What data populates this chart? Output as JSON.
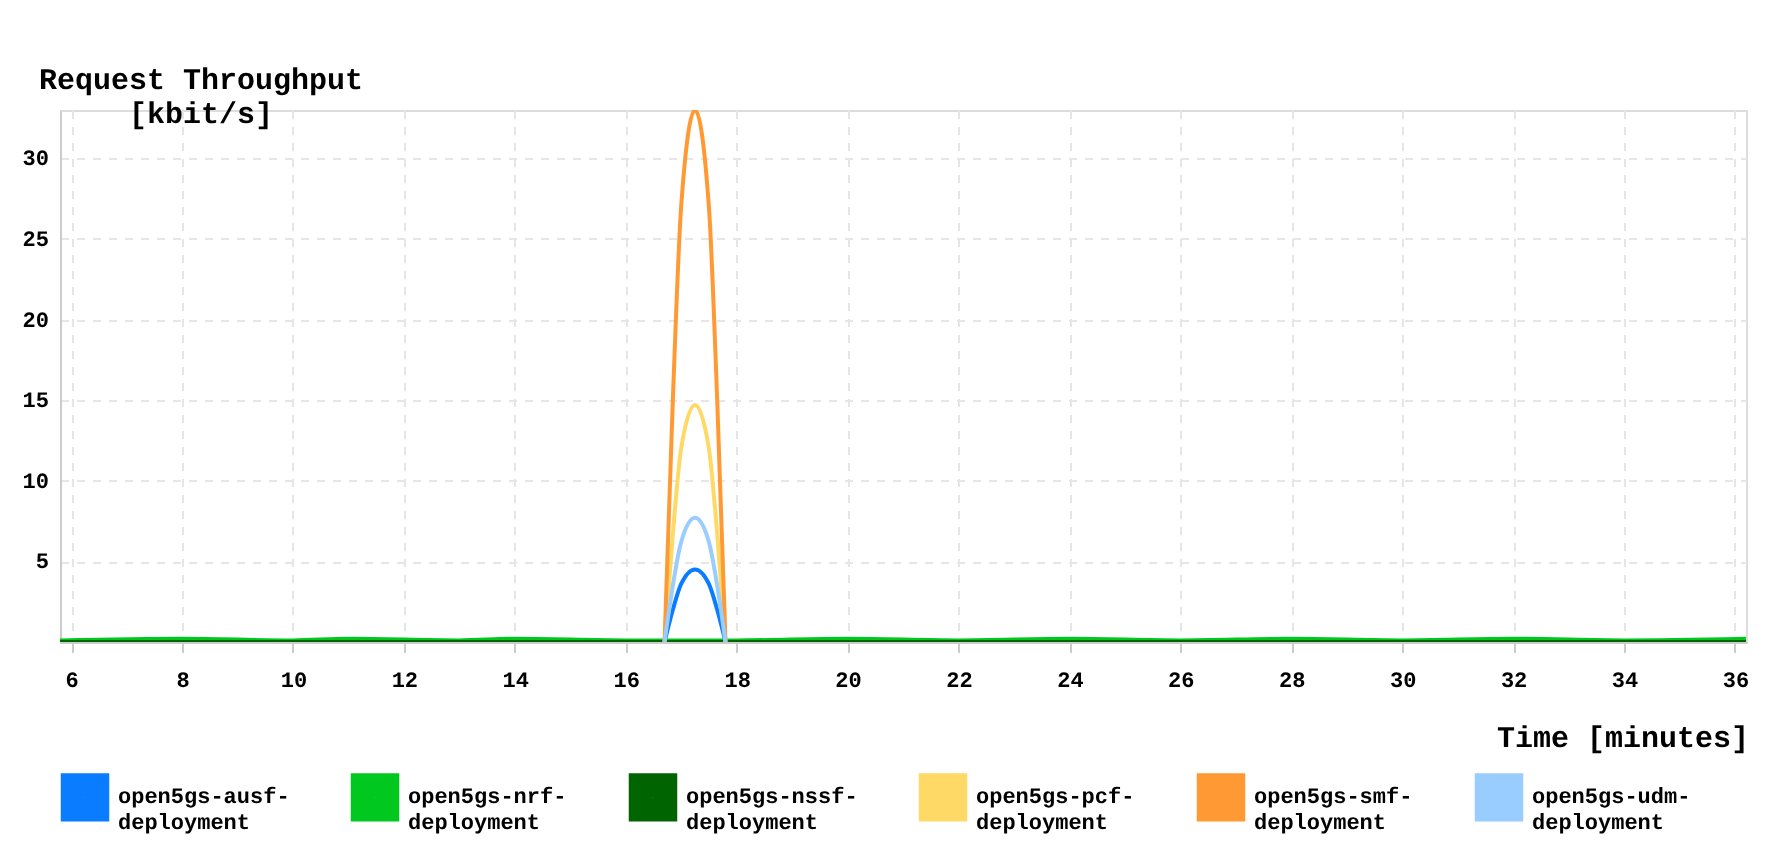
{
  "chart_data": {
    "type": "line",
    "xlabel": "Time [minutes]",
    "ylabel": "Request Throughput [kbit/s]",
    "xlim": [
      5.8,
      36.2
    ],
    "xticks": [
      6,
      8,
      10,
      12,
      14,
      16,
      18,
      20,
      22,
      24,
      26,
      28,
      30,
      32,
      34,
      36
    ],
    "ylim": [
      0,
      33
    ],
    "yticks": [
      5,
      10,
      15,
      20,
      25,
      30
    ],
    "grid": true,
    "legend": "bottom",
    "marker": "none",
    "line_style": "solid",
    "series": [
      {
        "name": "open5gs-ausf-deployment",
        "color": "#0a7cff",
        "x": [
          16.7,
          16.85,
          17.0,
          17.25,
          17.5,
          17.65,
          17.8
        ],
        "values": [
          0,
          2,
          3.6,
          4.5,
          3.6,
          2,
          0
        ]
      },
      {
        "name": "open5gs-nrf-deployment",
        "color": "#00c81e",
        "x": [
          5.8,
          8,
          10,
          11,
          13,
          14,
          16,
          18,
          20,
          22,
          24,
          26,
          28,
          30,
          32,
          34,
          36.2
        ],
        "values": [
          0.1,
          0.2,
          0.1,
          0.2,
          0.1,
          0.2,
          0.1,
          0.1,
          0.2,
          0.1,
          0.2,
          0.1,
          0.2,
          0.1,
          0.2,
          0.1,
          0.2
        ]
      },
      {
        "name": "open5gs-nssf-deployment",
        "color": "#006400",
        "x": [
          5.8,
          36.2
        ],
        "values": [
          0,
          0
        ]
      },
      {
        "name": "open5gs-pcf-deployment",
        "color": "#ffd966",
        "x": [
          16.7,
          16.85,
          17.0,
          17.25,
          17.5,
          17.65,
          17.8
        ],
        "values": [
          0,
          6.7,
          12,
          14.7,
          12,
          6.7,
          0
        ]
      },
      {
        "name": "open5gs-smf-deployment",
        "color": "#ff9933",
        "x": [
          16.7,
          16.85,
          17.0,
          17.25,
          17.5,
          17.65,
          17.8
        ],
        "values": [
          0,
          15,
          27,
          33,
          27,
          15,
          0
        ]
      },
      {
        "name": "open5gs-udm-deployment",
        "color": "#99ccff",
        "x": [
          16.7,
          16.85,
          17.0,
          17.25,
          17.5,
          17.65,
          17.8
        ],
        "values": [
          0,
          3.5,
          6.2,
          7.7,
          6.2,
          3.5,
          0
        ]
      }
    ]
  }
}
